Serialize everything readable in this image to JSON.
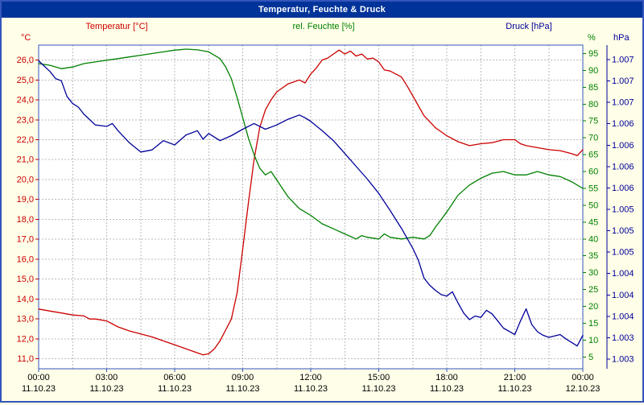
{
  "window": {
    "title": "Temperatur, Feuchte & Druck"
  },
  "legend": {
    "temperature": "Temperatur [°C]",
    "humidity": "rel. Feuchte [%]",
    "pressure": "Druck [hPa]"
  },
  "axis_units": {
    "left": "°C",
    "right_inner": "%",
    "right_outer": "hPa"
  },
  "colors": {
    "temperature": "#cc0000",
    "humidity": "#008000",
    "pressure": "#000099",
    "frame": "#3355bb",
    "grid": "#bbbbbb",
    "background": "#fffee8",
    "titlebar": "#003399",
    "plot_bg": "#ffffff",
    "axis_text": "#000000"
  },
  "chart_data": {
    "type": "line",
    "title": "Temperatur, Feuchte & Druck",
    "grid": true,
    "x_axis": {
      "range_hours": [
        0,
        24
      ],
      "major_step_h": 3,
      "minor_step_h": 1.5,
      "tick_times": [
        "00:00",
        "03:00",
        "06:00",
        "09:00",
        "12:00",
        "15:00",
        "18:00",
        "21:00",
        "00:00"
      ],
      "tick_dates": [
        "11.10.23",
        "11.10.23",
        "11.10.23",
        "11.10.23",
        "11.10.23",
        "11.10.23",
        "11.10.23",
        "11.10.23",
        "12.10.23"
      ]
    },
    "y_axes": {
      "temperature": {
        "unit": "°C",
        "range": [
          10.5,
          26.75
        ],
        "tick_values": [
          26,
          25,
          24,
          23,
          22,
          21,
          20,
          19,
          18,
          17,
          16,
          15,
          14,
          13,
          12,
          11
        ],
        "tick_labels": [
          "26,0",
          "25,0",
          "24,0",
          "23,0",
          "22,0",
          "21,0",
          "20,0",
          "19,0",
          "18,0",
          "17,0",
          "16,0",
          "15,0",
          "14,0",
          "13,0",
          "12,0",
          "11,0"
        ]
      },
      "humidity": {
        "unit": "%",
        "range": [
          1.5,
          97.5
        ],
        "tick_values": [
          95,
          90,
          85,
          80,
          75,
          70,
          65,
          60,
          55,
          50,
          45,
          40,
          35,
          30,
          25,
          20,
          15,
          10,
          5
        ],
        "tick_labels": [
          "95",
          "90",
          "85",
          "80",
          "75",
          "70",
          "65",
          "60",
          "55",
          "50",
          "45",
          "40",
          "35",
          "30",
          "25",
          "20",
          "15",
          "10",
          "5"
        ]
      },
      "pressure": {
        "unit": "hPa",
        "range": [
          1002.78,
          1007.32
        ],
        "tick_labels": [
          "1.007",
          "1.007",
          "1.007",
          "1.006",
          "1.006",
          "1.006",
          "1.006",
          "1.005",
          "1.005",
          "1.005",
          "1.004",
          "1.004",
          "1.004",
          "1.003",
          "1.003"
        ]
      }
    },
    "series": [
      {
        "name": "Temperatur [°C]",
        "axis": "temperature",
        "color_key": "temperature",
        "points": [
          [
            0,
            13.5
          ],
          [
            0.5,
            13.4
          ],
          [
            1,
            13.3
          ],
          [
            1.5,
            13.2
          ],
          [
            2,
            13.15
          ],
          [
            2.25,
            13.0
          ],
          [
            2.5,
            13.0
          ],
          [
            3,
            12.9
          ],
          [
            3.5,
            12.6
          ],
          [
            4,
            12.4
          ],
          [
            4.5,
            12.25
          ],
          [
            5,
            12.1
          ],
          [
            5.5,
            11.9
          ],
          [
            6,
            11.7
          ],
          [
            6.5,
            11.5
          ],
          [
            7,
            11.3
          ],
          [
            7.25,
            11.2
          ],
          [
            7.5,
            11.25
          ],
          [
            7.75,
            11.5
          ],
          [
            8,
            11.9
          ],
          [
            8.5,
            13.0
          ],
          [
            8.75,
            14.3
          ],
          [
            9,
            16.5
          ],
          [
            9.25,
            18.8
          ],
          [
            9.5,
            21.0
          ],
          [
            9.75,
            22.6
          ],
          [
            10,
            23.5
          ],
          [
            10.25,
            24.0
          ],
          [
            10.5,
            24.4
          ],
          [
            11,
            24.8
          ],
          [
            11.25,
            24.9
          ],
          [
            11.5,
            25.0
          ],
          [
            11.75,
            24.85
          ],
          [
            12,
            25.3
          ],
          [
            12.25,
            25.6
          ],
          [
            12.5,
            26.0
          ],
          [
            12.75,
            26.1
          ],
          [
            13,
            26.3
          ],
          [
            13.25,
            26.5
          ],
          [
            13.5,
            26.3
          ],
          [
            13.75,
            26.45
          ],
          [
            14,
            26.2
          ],
          [
            14.25,
            26.3
          ],
          [
            14.5,
            26.05
          ],
          [
            14.75,
            26.1
          ],
          [
            15,
            25.9
          ],
          [
            15.25,
            25.5
          ],
          [
            15.5,
            25.45
          ],
          [
            15.75,
            25.3
          ],
          [
            16,
            25.15
          ],
          [
            16.25,
            24.7
          ],
          [
            16.5,
            24.2
          ],
          [
            16.75,
            23.7
          ],
          [
            17,
            23.2
          ],
          [
            17.25,
            22.9
          ],
          [
            17.5,
            22.6
          ],
          [
            17.75,
            22.4
          ],
          [
            18,
            22.2
          ],
          [
            18.5,
            21.9
          ],
          [
            19,
            21.7
          ],
          [
            19.5,
            21.8
          ],
          [
            20,
            21.85
          ],
          [
            20.5,
            22.0
          ],
          [
            21,
            22.0
          ],
          [
            21.25,
            21.8
          ],
          [
            21.5,
            21.7
          ],
          [
            22,
            21.6
          ],
          [
            22.5,
            21.5
          ],
          [
            23,
            21.45
          ],
          [
            23.5,
            21.3
          ],
          [
            23.75,
            21.2
          ],
          [
            24,
            21.5
          ]
        ]
      },
      {
        "name": "rel. Feuchte [%]",
        "axis": "humidity",
        "color_key": "humidity",
        "points": [
          [
            0,
            92
          ],
          [
            0.5,
            91.5
          ],
          [
            1,
            90.5
          ],
          [
            1.5,
            91
          ],
          [
            2,
            92
          ],
          [
            2.5,
            92.5
          ],
          [
            3,
            93
          ],
          [
            3.5,
            93.5
          ],
          [
            4,
            94
          ],
          [
            4.5,
            94.5
          ],
          [
            5,
            95
          ],
          [
            5.5,
            95.5
          ],
          [
            6,
            96
          ],
          [
            6.5,
            96.3
          ],
          [
            7,
            96.1
          ],
          [
            7.5,
            95.5
          ],
          [
            8,
            93.5
          ],
          [
            8.25,
            91
          ],
          [
            8.5,
            87.5
          ],
          [
            8.75,
            82
          ],
          [
            9,
            76
          ],
          [
            9.25,
            70
          ],
          [
            9.5,
            65
          ],
          [
            9.75,
            61
          ],
          [
            10,
            59
          ],
          [
            10.25,
            60
          ],
          [
            10.5,
            57.5
          ],
          [
            10.75,
            55
          ],
          [
            11,
            52.5
          ],
          [
            11.5,
            49
          ],
          [
            12,
            47
          ],
          [
            12.5,
            44.5
          ],
          [
            13,
            43
          ],
          [
            13.5,
            41.5
          ],
          [
            14,
            40
          ],
          [
            14.25,
            41
          ],
          [
            14.5,
            40.5
          ],
          [
            15,
            40
          ],
          [
            15.25,
            41.5
          ],
          [
            15.5,
            40.5
          ],
          [
            16,
            40
          ],
          [
            16.5,
            40.5
          ],
          [
            17,
            40
          ],
          [
            17.25,
            41
          ],
          [
            17.5,
            43.5
          ],
          [
            18,
            48
          ],
          [
            18.5,
            53
          ],
          [
            19,
            56
          ],
          [
            19.5,
            58
          ],
          [
            20,
            59.5
          ],
          [
            20.5,
            60
          ],
          [
            21,
            59
          ],
          [
            21.5,
            59
          ],
          [
            22,
            60
          ],
          [
            22.5,
            59
          ],
          [
            23,
            58.5
          ],
          [
            23.5,
            57
          ],
          [
            24,
            55
          ]
        ]
      },
      {
        "name": "Druck [hPa]",
        "axis": "pressure",
        "color_key": "pressure",
        "points": [
          [
            0,
            1007.1
          ],
          [
            0.5,
            1006.95
          ],
          [
            0.75,
            1006.85
          ],
          [
            1,
            1006.82
          ],
          [
            1.25,
            1006.6
          ],
          [
            1.5,
            1006.5
          ],
          [
            1.75,
            1006.45
          ],
          [
            2,
            1006.35
          ],
          [
            2.5,
            1006.2
          ],
          [
            3,
            1006.18
          ],
          [
            3.25,
            1006.22
          ],
          [
            3.5,
            1006.12
          ],
          [
            4,
            1005.95
          ],
          [
            4.5,
            1005.82
          ],
          [
            5,
            1005.85
          ],
          [
            5.5,
            1005.98
          ],
          [
            6,
            1005.92
          ],
          [
            6.5,
            1006.06
          ],
          [
            7,
            1006.12
          ],
          [
            7.25,
            1006.0
          ],
          [
            7.5,
            1006.08
          ],
          [
            8,
            1005.98
          ],
          [
            8.5,
            1006.05
          ],
          [
            9,
            1006.14
          ],
          [
            9.5,
            1006.22
          ],
          [
            10,
            1006.14
          ],
          [
            10.5,
            1006.2
          ],
          [
            11,
            1006.28
          ],
          [
            11.5,
            1006.34
          ],
          [
            11.75,
            1006.3
          ],
          [
            12,
            1006.25
          ],
          [
            12.5,
            1006.12
          ],
          [
            13,
            1005.98
          ],
          [
            13.5,
            1005.8
          ],
          [
            14,
            1005.62
          ],
          [
            14.5,
            1005.44
          ],
          [
            15,
            1005.24
          ],
          [
            15.5,
            1005.0
          ],
          [
            16,
            1004.75
          ],
          [
            16.5,
            1004.47
          ],
          [
            16.75,
            1004.3
          ],
          [
            17,
            1004.05
          ],
          [
            17.25,
            1003.95
          ],
          [
            17.5,
            1003.88
          ],
          [
            17.75,
            1003.82
          ],
          [
            18,
            1003.8
          ],
          [
            18.25,
            1003.86
          ],
          [
            18.5,
            1003.7
          ],
          [
            18.75,
            1003.56
          ],
          [
            19,
            1003.47
          ],
          [
            19.25,
            1003.52
          ],
          [
            19.5,
            1003.5
          ],
          [
            19.75,
            1003.6
          ],
          [
            20,
            1003.55
          ],
          [
            20.25,
            1003.45
          ],
          [
            20.5,
            1003.35
          ],
          [
            21,
            1003.26
          ],
          [
            21.25,
            1003.45
          ],
          [
            21.5,
            1003.62
          ],
          [
            21.75,
            1003.4
          ],
          [
            22,
            1003.3
          ],
          [
            22.25,
            1003.25
          ],
          [
            22.5,
            1003.22
          ],
          [
            23,
            1003.26
          ],
          [
            23.25,
            1003.2
          ],
          [
            23.5,
            1003.15
          ],
          [
            23.75,
            1003.1
          ],
          [
            24,
            1003.25
          ]
        ]
      }
    ]
  }
}
